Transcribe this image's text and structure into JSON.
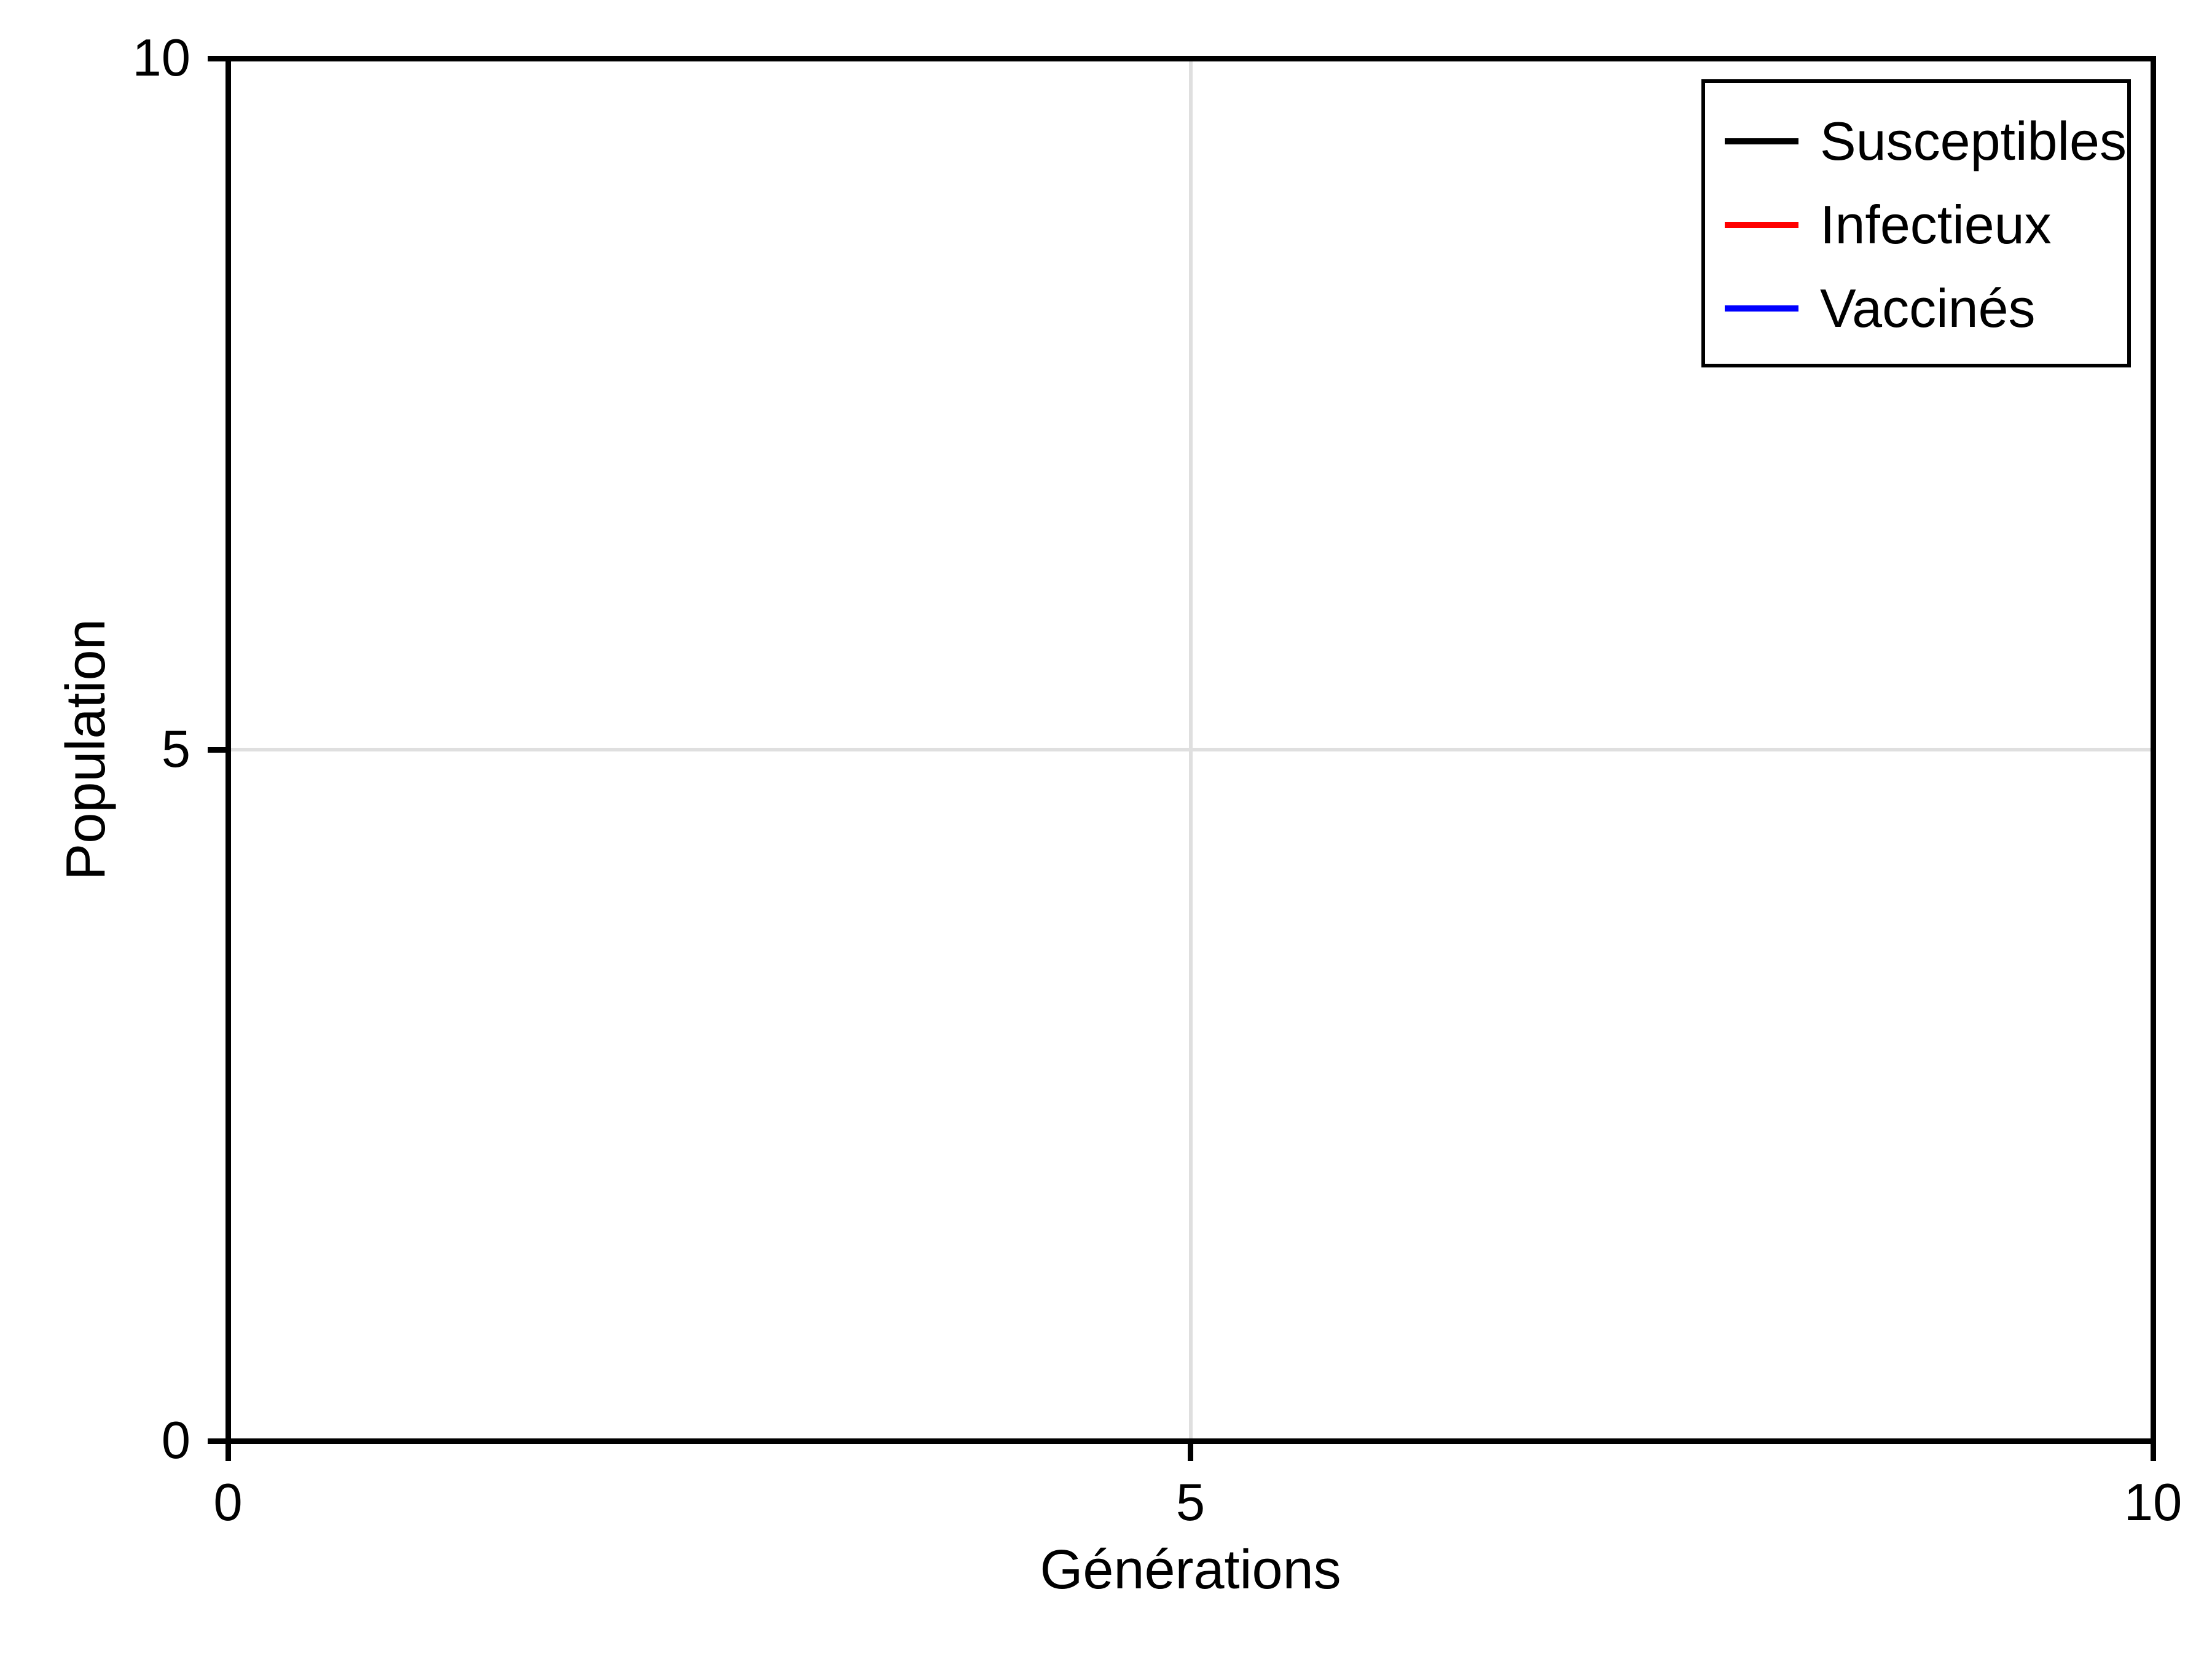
{
  "figure": {
    "background": "#ffffff"
  },
  "chart_data": {
    "type": "line",
    "title": "",
    "xlabel": "Générations",
    "ylabel": "Population",
    "xlim": [
      0,
      10
    ],
    "ylim": [
      0,
      10
    ],
    "xticks": [
      0,
      5,
      10
    ],
    "yticks": [
      0,
      5,
      10
    ],
    "xtick_labels": [
      "0",
      "5",
      "10"
    ],
    "ytick_labels": [
      "0",
      "5",
      "10"
    ],
    "grid": true,
    "grid_color": "#dfdfdf",
    "axis_color": "#000000",
    "legend_position": "top-right",
    "legend": {
      "border_color": "#000000",
      "background": "#ffffff"
    },
    "series": [
      {
        "name": "Susceptibles",
        "color": "#000000",
        "x": [],
        "values": []
      },
      {
        "name": "Infectieux",
        "color": "#ff0000",
        "x": [],
        "values": []
      },
      {
        "name": "Vaccinés",
        "color": "#0000ff",
        "x": [],
        "values": []
      }
    ]
  }
}
